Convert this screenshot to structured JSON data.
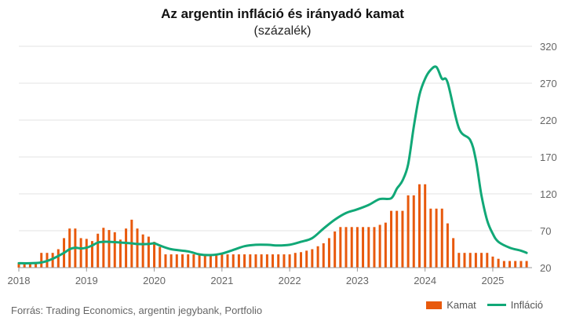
{
  "chart_data": {
    "type": "bar+line",
    "title": "Az argentin infláció és irányadó kamat",
    "subtitle": "(százalék)",
    "source": "Forrás: Trading Economics, argentin jegybank, Portfolio",
    "y_axis": {
      "side": "right",
      "ylim": [
        20,
        320
      ],
      "ticks": [
        20,
        70,
        120,
        170,
        220,
        270,
        320
      ]
    },
    "x_axis": {
      "ticks": [
        "2018",
        "2019",
        "2020",
        "2021",
        "2022",
        "2023",
        "2024",
        "2025"
      ],
      "start": 2018,
      "end": 2025.58
    },
    "grid": true,
    "colors": {
      "bar": "#e8590c",
      "line": "#11a877",
      "grid": "#e3e3e3",
      "axis": "#999999"
    },
    "series": [
      {
        "name": "Kamat",
        "kind": "bar",
        "x": [
          2018.0,
          2018.083,
          2018.167,
          2018.25,
          2018.333,
          2018.417,
          2018.5,
          2018.583,
          2018.667,
          2018.75,
          2018.833,
          2018.917,
          2019.0,
          2019.083,
          2019.167,
          2019.25,
          2019.333,
          2019.417,
          2019.5,
          2019.583,
          2019.667,
          2019.75,
          2019.833,
          2019.917,
          2020.0,
          2020.083,
          2020.167,
          2020.25,
          2020.333,
          2020.417,
          2020.5,
          2020.583,
          2020.667,
          2020.75,
          2020.833,
          2020.917,
          2021.0,
          2021.083,
          2021.167,
          2021.25,
          2021.333,
          2021.417,
          2021.5,
          2021.583,
          2021.667,
          2021.75,
          2021.833,
          2021.917,
          2022.0,
          2022.083,
          2022.167,
          2022.25,
          2022.333,
          2022.417,
          2022.5,
          2022.583,
          2022.667,
          2022.75,
          2022.833,
          2022.917,
          2023.0,
          2023.083,
          2023.167,
          2023.25,
          2023.333,
          2023.417,
          2023.5,
          2023.583,
          2023.667,
          2023.75,
          2023.833,
          2023.917,
          2024.0,
          2024.083,
          2024.167,
          2024.25,
          2024.333,
          2024.417,
          2024.5,
          2024.583,
          2024.667,
          2024.75,
          2024.833,
          2024.917,
          2025.0,
          2025.083,
          2025.167,
          2025.25,
          2025.333,
          2025.417,
          2025.5
        ],
        "values": [
          27,
          27,
          27,
          27,
          40,
          40,
          40,
          45,
          60,
          73,
          73,
          60,
          59,
          56,
          66,
          74,
          71,
          68,
          58,
          73,
          85,
          73,
          65,
          62,
          55,
          48,
          38,
          38,
          38,
          38,
          38,
          38,
          38,
          38,
          38,
          38,
          38,
          38,
          38,
          38,
          38,
          38,
          38,
          38,
          38,
          38,
          38,
          38,
          38,
          40,
          41,
          43,
          45,
          49,
          53,
          60,
          69,
          75,
          75,
          75,
          75,
          75,
          75,
          75,
          78,
          81,
          97,
          97,
          97,
          118,
          118,
          133,
          133,
          100,
          100,
          100,
          80,
          60,
          40,
          40,
          40,
          40,
          40,
          40,
          35,
          32,
          29,
          29,
          29,
          29,
          29
        ]
      },
      {
        "name": "Infláció",
        "kind": "line",
        "x": [
          2018.0,
          2018.167,
          2018.333,
          2018.5,
          2018.667,
          2018.75,
          2018.833,
          2018.917,
          2019.0,
          2019.083,
          2019.167,
          2019.25,
          2019.333,
          2019.5,
          2019.667,
          2019.75,
          2019.917,
          2020.0,
          2020.083,
          2020.25,
          2020.5,
          2020.667,
          2020.833,
          2021.0,
          2021.167,
          2021.333,
          2021.5,
          2021.667,
          2021.833,
          2022.0,
          2022.167,
          2022.333,
          2022.5,
          2022.667,
          2022.833,
          2023.0,
          2023.167,
          2023.333,
          2023.5,
          2023.583,
          2023.667,
          2023.75,
          2023.833,
          2023.917,
          2024.0,
          2024.083,
          2024.167,
          2024.25,
          2024.333,
          2024.5,
          2024.667,
          2024.75,
          2024.833,
          2024.917,
          2025.0,
          2025.083,
          2025.25,
          2025.417,
          2025.5
        ],
        "values": [
          26,
          26,
          27,
          32,
          40,
          45,
          47,
          46,
          47,
          50,
          54,
          55,
          55,
          54,
          53,
          52,
          52,
          53,
          50,
          45,
          42,
          38,
          37,
          39,
          44,
          49,
          51,
          51,
          50,
          51,
          55,
          60,
          73,
          85,
          94,
          99,
          105,
          113,
          114,
          127,
          138,
          160,
          211,
          254,
          276,
          288,
          292,
          276,
          271,
          209,
          193,
          166,
          118,
          84,
          66,
          55,
          47,
          43,
          40
        ]
      }
    ],
    "legend": {
      "placement": "bottom-right",
      "items": [
        {
          "name": "Kamat"
        },
        {
          "name": "Infláció"
        }
      ]
    }
  }
}
